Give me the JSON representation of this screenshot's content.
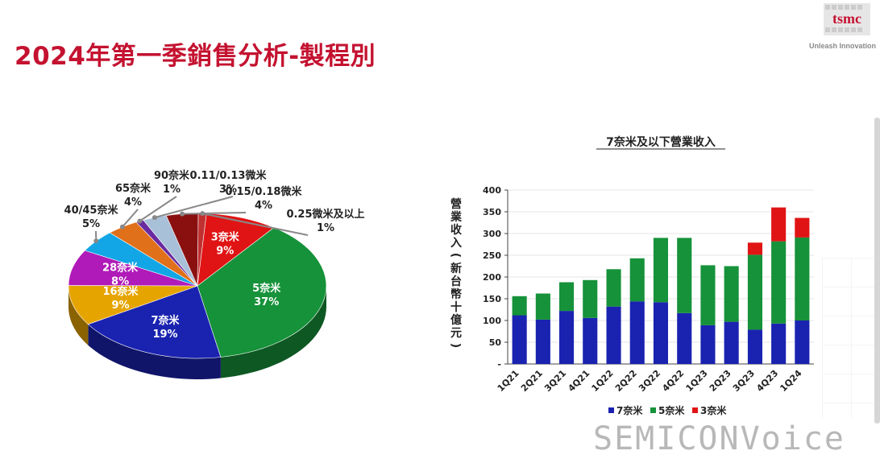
{
  "header": {
    "title": "2024年第一季銷售分析-製程別",
    "logo_text": "tsmc",
    "tagline": "Unleash Innovation"
  },
  "watermark": "SEMICONVoice",
  "colors": {
    "title": "#c41230",
    "n7": "#1a23b0",
    "n5": "#16923a",
    "n3": "#e01414"
  },
  "chart_data": [
    {
      "type": "pie",
      "labels": [
        "3奈米",
        "5奈米",
        "7奈米",
        "16奈米",
        "28奈米",
        "40/45奈米",
        "65奈米",
        "90奈米",
        "0.11/0.13微米",
        "0.15/0.18微米",
        "0.25微米及以上"
      ],
      "values": [
        9,
        37,
        19,
        9,
        8,
        5,
        4,
        1,
        3,
        4,
        1
      ],
      "value_labels": [
        "9%",
        "37%",
        "19%",
        "9%",
        "8%",
        "5%",
        "4%",
        "1%",
        "3%",
        "4%",
        "1%"
      ],
      "colors": [
        "#e01414",
        "#16923a",
        "#1a23b0",
        "#e6a400",
        "#b01ab8",
        "#12a6e6",
        "#e0701a",
        "#6a2aa0",
        "#a8c0d8",
        "#8a1010",
        "#c03030"
      ]
    },
    {
      "type": "bar",
      "stacked": true,
      "title": "7奈米及以下營業收入",
      "ylabel": "營業收入(新台幣十億元)",
      "categories": [
        "1Q21",
        "2Q21",
        "3Q21",
        "4Q21",
        "1Q22",
        "2Q22",
        "3Q22",
        "4Q22",
        "1Q23",
        "2Q23",
        "3Q23",
        "4Q23",
        "1Q24"
      ],
      "ylim": [
        0,
        400
      ],
      "yticks": [
        "-",
        "50",
        "100",
        "150",
        "200",
        "250",
        "300",
        "350",
        "400"
      ],
      "series": [
        {
          "name": "7奈米",
          "values": [
            112,
            102,
            122,
            106,
            132,
            144,
            142,
            117,
            89,
            97,
            79,
            93,
            100
          ]
        },
        {
          "name": "5奈米",
          "values": [
            44,
            60,
            66,
            87,
            86,
            99,
            148,
            173,
            138,
            128,
            172,
            189,
            191
          ]
        },
        {
          "name": "3奈米",
          "values": [
            0,
            0,
            0,
            0,
            0,
            0,
            0,
            0,
            0,
            0,
            28,
            78,
            45
          ]
        }
      ]
    }
  ]
}
